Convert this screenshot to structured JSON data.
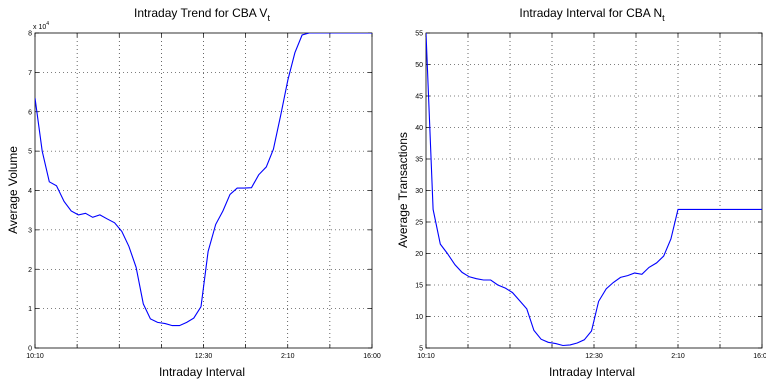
{
  "chart_data": [
    {
      "type": "line",
      "title": "Intraday Trend for CBA V",
      "title_subscript": "t",
      "xlabel": "Intraday Interval",
      "ylabel": "Average Volume",
      "y_multiplier_label": "x 10",
      "y_multiplier_exponent": "4",
      "x_ticks": [
        {
          "pos": 0,
          "label": "10:10"
        },
        {
          "pos": 1,
          "label": ""
        },
        {
          "pos": 2,
          "label": ""
        },
        {
          "pos": 3,
          "label": ""
        },
        {
          "pos": 4,
          "label": "12:30"
        },
        {
          "pos": 5,
          "label": ""
        },
        {
          "pos": 6,
          "label": "2:10"
        },
        {
          "pos": 7,
          "label": ""
        },
        {
          "pos": 8,
          "label": "16:00"
        }
      ],
      "xlim": [
        0,
        8
      ],
      "ylim": [
        0,
        8
      ],
      "y_ticks": [
        0,
        1,
        2,
        3,
        4,
        5,
        6,
        7,
        8
      ],
      "grid": true,
      "line_color": "#0000ff",
      "series": [
        {
          "x": [
            0.0,
            0.17,
            0.34,
            0.51,
            0.69,
            0.86,
            1.03,
            1.2,
            1.37,
            1.54,
            1.71,
            1.89,
            2.06,
            2.23,
            2.4,
            2.57,
            2.74,
            2.91,
            3.09,
            3.26,
            3.43,
            3.6,
            3.77,
            3.94,
            4.11,
            4.29,
            4.46,
            4.63,
            4.8,
            4.97,
            5.14,
            5.31,
            5.49,
            5.66,
            5.83,
            6.0,
            6.17,
            6.34,
            6.51,
            6.69,
            6.86,
            7.03,
            7.2,
            7.37,
            7.54,
            7.71,
            7.89,
            8.0
          ],
          "values": [
            6.35,
            5.0,
            4.22,
            4.12,
            3.72,
            3.48,
            3.38,
            3.42,
            3.32,
            3.38,
            3.28,
            3.18,
            2.96,
            2.58,
            2.05,
            1.12,
            0.74,
            0.65,
            0.62,
            0.57,
            0.57,
            0.65,
            0.76,
            1.05,
            2.45,
            3.14,
            3.48,
            3.9,
            4.06,
            4.06,
            4.07,
            4.4,
            4.6,
            5.05,
            5.9,
            6.8,
            7.5,
            7.95,
            8.0,
            8.0,
            8.0,
            8.0,
            8.0,
            8.0,
            8.0,
            8.0,
            8.0,
            8.0
          ]
        }
      ]
    },
    {
      "type": "line",
      "title": "Intraday Interval for CBA N",
      "title_subscript": "t",
      "xlabel": "Intraday Interval",
      "ylabel": "Average Transactions",
      "x_ticks": [
        {
          "pos": 0,
          "label": "10:10"
        },
        {
          "pos": 1,
          "label": ""
        },
        {
          "pos": 2,
          "label": ""
        },
        {
          "pos": 3,
          "label": ""
        },
        {
          "pos": 4,
          "label": "12:30"
        },
        {
          "pos": 5,
          "label": ""
        },
        {
          "pos": 6,
          "label": "2:10"
        },
        {
          "pos": 7,
          "label": ""
        },
        {
          "pos": 8,
          "label": "16:00"
        }
      ],
      "xlim": [
        0,
        8
      ],
      "ylim": [
        5,
        55
      ],
      "y_ticks": [
        5,
        10,
        15,
        20,
        25,
        30,
        35,
        40,
        45,
        50,
        55
      ],
      "grid": true,
      "line_color": "#0000ff",
      "series": [
        {
          "x": [
            0.0,
            0.17,
            0.34,
            0.51,
            0.69,
            0.86,
            1.03,
            1.2,
            1.37,
            1.54,
            1.71,
            1.89,
            2.06,
            2.23,
            2.4,
            2.57,
            2.74,
            2.91,
            3.09,
            3.26,
            3.43,
            3.6,
            3.77,
            3.94,
            4.11,
            4.29,
            4.46,
            4.63,
            4.8,
            4.97,
            5.14,
            5.31,
            5.49,
            5.66,
            5.83,
            6.0,
            6.17,
            6.34,
            6.51,
            6.69,
            6.86,
            7.03,
            7.2,
            7.37,
            7.54,
            7.71,
            7.89,
            8.0
          ],
          "values": [
            55.0,
            27.0,
            21.5,
            20.0,
            18.2,
            17.0,
            16.3,
            16.0,
            15.8,
            15.8,
            15.0,
            14.5,
            13.8,
            12.5,
            11.2,
            7.8,
            6.4,
            5.9,
            5.7,
            5.4,
            5.5,
            5.8,
            6.3,
            7.7,
            12.4,
            14.4,
            15.4,
            16.2,
            16.5,
            16.9,
            16.7,
            17.8,
            18.5,
            19.6,
            22.3,
            27.0,
            27.0,
            27.0,
            27.0,
            27.0,
            27.0,
            27.0,
            27.0,
            27.0,
            27.0,
            27.0,
            27.0,
            27.0
          ]
        }
      ]
    }
  ]
}
